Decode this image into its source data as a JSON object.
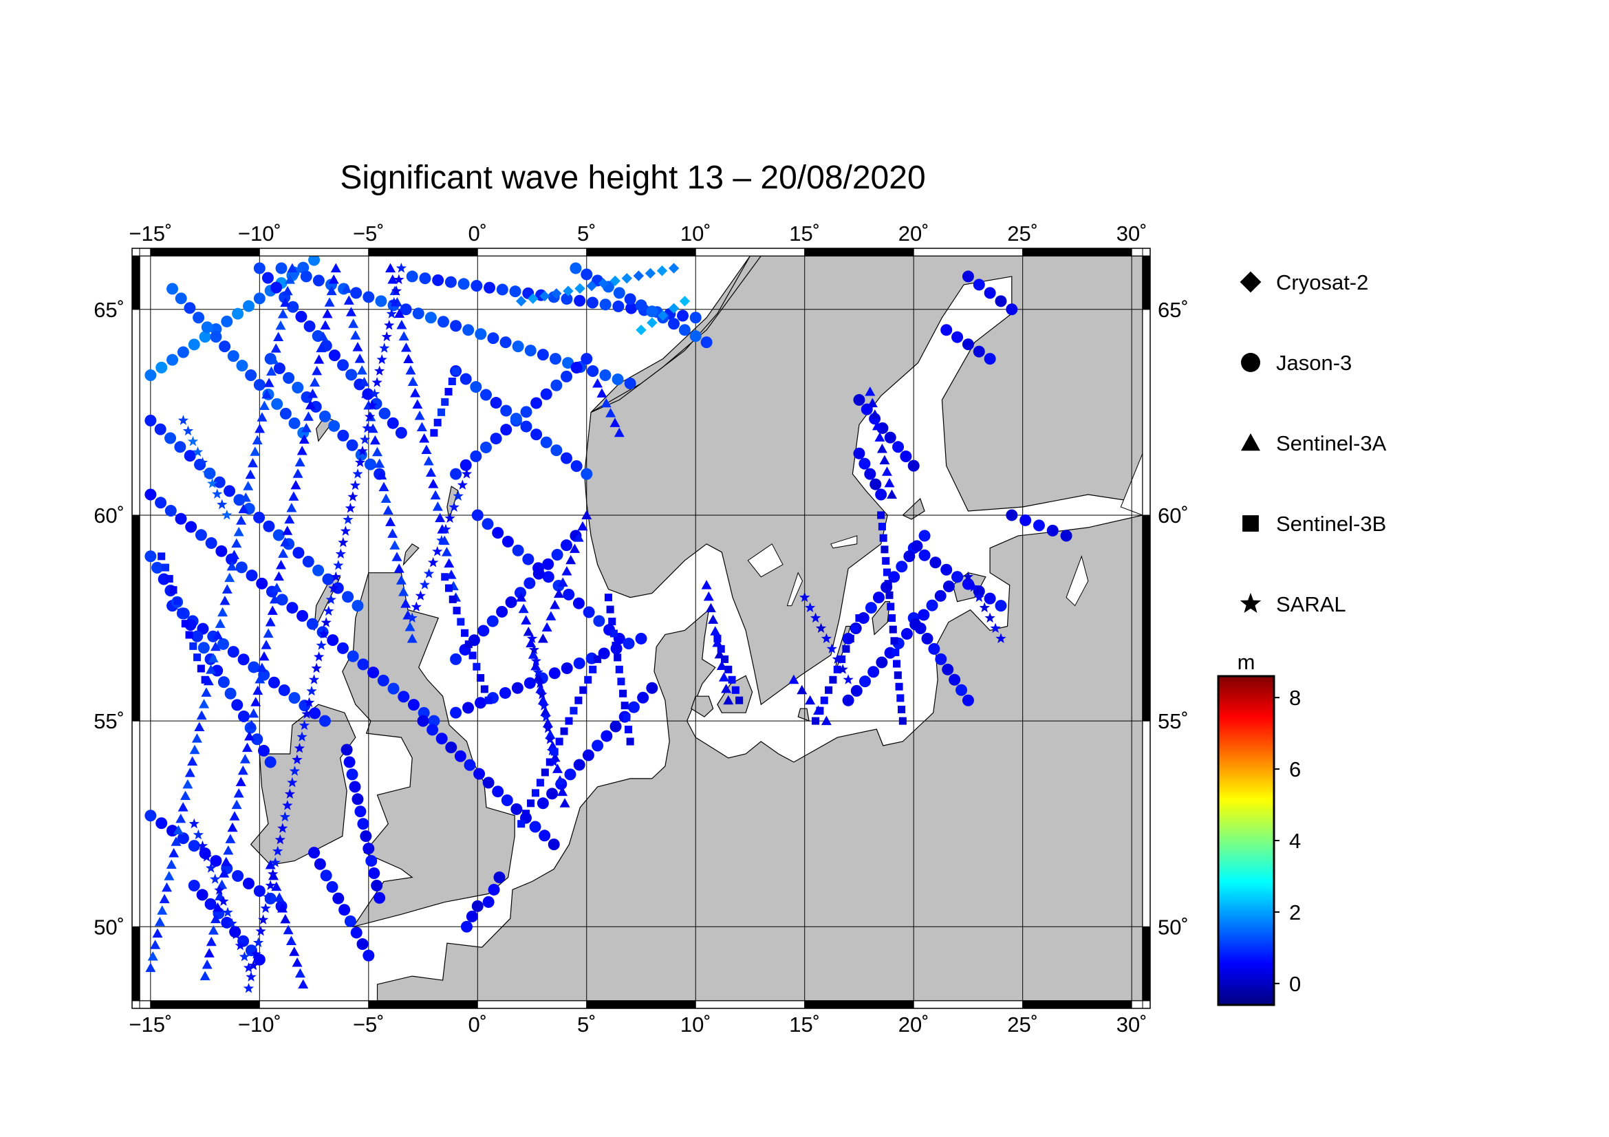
{
  "title": "Significant wave height 13 – 20/08/2020",
  "map": {
    "lon_range": [
      -15.5,
      30.5
    ],
    "lat_range": [
      48.2,
      66.3
    ],
    "lon_ticks": [
      -15,
      -10,
      -5,
      0,
      5,
      10,
      15,
      20,
      25,
      30
    ],
    "lon_tick_labels": [
      "−15˚",
      "−10˚",
      "−5˚",
      "0˚",
      "5˚",
      "10˚",
      "15˚",
      "20˚",
      "25˚",
      "30˚"
    ],
    "lat_ticks": [
      50,
      55,
      60,
      65
    ],
    "lat_tick_labels": [
      "50˚",
      "55˚",
      "60˚",
      "65˚"
    ],
    "land_color": "#c0c0c0",
    "sea_color": "#ffffff",
    "grid": true
  },
  "legend": {
    "items": [
      {
        "label": "Cryosat-2",
        "symbol": "diamond"
      },
      {
        "label": "Jason-3",
        "symbol": "circle"
      },
      {
        "label": "Sentinel-3A",
        "symbol": "triangle"
      },
      {
        "label": "Sentinel-3B",
        "symbol": "square"
      },
      {
        "label": "SARAL",
        "symbol": "star"
      }
    ]
  },
  "colorbar": {
    "unit": "m",
    "range": [
      -0.6,
      8.6
    ],
    "ticks": [
      0,
      2,
      4,
      6,
      8
    ],
    "tick_labels": [
      "0",
      "2",
      "4",
      "6",
      "8"
    ],
    "colors": [
      "#00007f",
      "#0000ff",
      "#007fff",
      "#00ffff",
      "#7fff7f",
      "#ffff00",
      "#ff7f00",
      "#ff0000",
      "#7f0000"
    ]
  },
  "chart_data": {
    "type": "scatter",
    "title": "Significant wave height 13 – 20/08/2020",
    "xlabel": "",
    "ylabel": "",
    "xlim": [
      -15.5,
      30.5
    ],
    "ylim": [
      48.2,
      66.3
    ],
    "color_scale": "significant wave height (m)",
    "series": [
      {
        "name": "Jason-3",
        "symbol": "circle",
        "value_range": [
          0.3,
          1.6
        ],
        "tracks": [
          {
            "from": [
              -15,
              63.4
            ],
            "to": [
              -7.5,
              66.2
            ],
            "swh": 1.6
          },
          {
            "from": [
              -14,
              65.5
            ],
            "to": [
              -8,
              62.0
            ],
            "swh": 1.3
          },
          {
            "from": [
              -10,
              66.0
            ],
            "to": [
              -3.5,
              62.0
            ],
            "swh": 0.9
          },
          {
            "from": [
              -9.5,
              63.8
            ],
            "to": [
              -4.5,
              61.0
            ],
            "swh": 1.1
          },
          {
            "from": [
              -15,
              62.3
            ],
            "to": [
              -5.5,
              57.8
            ],
            "swh": 1.0
          },
          {
            "from": [
              -15,
              60.5
            ],
            "to": [
              -2.0,
              55.0
            ],
            "swh": 0.8
          },
          {
            "from": [
              -14,
              57.8
            ],
            "to": [
              -7.0,
              55.0
            ],
            "swh": 0.9
          },
          {
            "from": [
              -15,
              59.0
            ],
            "to": [
              -9.5,
              54.0
            ],
            "swh": 0.9
          },
          {
            "from": [
              -15,
              52.7
            ],
            "to": [
              -9.0,
              50.5
            ],
            "swh": 0.7
          },
          {
            "from": [
              -13,
              51.0
            ],
            "to": [
              -10.0,
              49.2
            ],
            "swh": 0.7
          },
          {
            "from": [
              -7.5,
              51.8
            ],
            "to": [
              -5.0,
              49.3
            ],
            "swh": 0.6
          },
          {
            "from": [
              -6.0,
              54.3
            ],
            "to": [
              -4.5,
              50.7
            ],
            "swh": 0.5
          },
          {
            "from": [
              -2.5,
              55.0
            ],
            "to": [
              3.5,
              52.0
            ],
            "swh": 0.5
          },
          {
            "from": [
              0,
              60.0
            ],
            "to": [
              6.5,
              57.0
            ],
            "swh": 0.7
          },
          {
            "from": [
              -1.0,
              56.5
            ],
            "to": [
              4.5,
              59.5
            ],
            "swh": 0.6
          },
          {
            "from": [
              -1.0,
              55.2
            ],
            "to": [
              7.5,
              57.0
            ],
            "swh": 0.6
          },
          {
            "from": [
              3.0,
              53.0
            ],
            "to": [
              8.0,
              55.8
            ],
            "swh": 0.5
          },
          {
            "from": [
              0,
              50.5
            ],
            "to": [
              -0.5,
              50.0
            ],
            "swh": 0.4
          },
          {
            "from": [
              1.0,
              51.2
            ],
            "to": [
              0.5,
              50.6
            ],
            "swh": 0.4
          },
          {
            "from": [
              -9.0,
              66.0
            ],
            "to": [
              7.0,
              63.2
            ],
            "swh": 1.2
          },
          {
            "from": [
              -3.0,
              65.8
            ],
            "to": [
              10.0,
              64.8
            ],
            "swh": 1.0
          },
          {
            "from": [
              4.5,
              66.0
            ],
            "to": [
              10.5,
              64.2
            ],
            "swh": 1.2
          },
          {
            "from": [
              5.0,
              63.8
            ],
            "to": [
              -1.0,
              61.0
            ],
            "swh": 0.9
          },
          {
            "from": [
              -1.0,
              63.5
            ],
            "to": [
              5.0,
              61.0
            ],
            "swh": 1.0
          },
          {
            "from": [
              17.5,
              62.8
            ],
            "to": [
              20.0,
              61.2
            ],
            "swh": 0.4
          },
          {
            "from": [
              17.5,
              61.5
            ],
            "to": [
              18.5,
              60.5
            ],
            "swh": 0.4
          },
          {
            "from": [
              20.0,
              59.2
            ],
            "to": [
              24.0,
              57.8
            ],
            "swh": 0.5
          },
          {
            "from": [
              20.0,
              57.5
            ],
            "to": [
              22.5,
              55.5
            ],
            "swh": 0.5
          },
          {
            "from": [
              17.0,
              57.0
            ],
            "to": [
              20.5,
              59.5
            ],
            "swh": 0.5
          },
          {
            "from": [
              17.0,
              55.5
            ],
            "to": [
              22.0,
              58.5
            ],
            "swh": 0.5
          },
          {
            "from": [
              24.5,
              60.0
            ],
            "to": [
              27.0,
              59.5
            ],
            "swh": 0.4
          },
          {
            "from": [
              22.5,
              65.8
            ],
            "to": [
              24.5,
              65.0
            ],
            "swh": 0.4
          },
          {
            "from": [
              21.5,
              64.5
            ],
            "to": [
              23.5,
              63.8
            ],
            "swh": 0.4
          }
        ]
      },
      {
        "name": "Sentinel-3A",
        "symbol": "triangle",
        "value_range": [
          0.3,
          1.3
        ],
        "tracks": [
          {
            "from": [
              -15,
              49.0
            ],
            "to": [
              -8.5,
              66.0
            ],
            "swh": 1.0
          },
          {
            "from": [
              -12.5,
              48.8
            ],
            "to": [
              -6.5,
              66.0
            ],
            "swh": 0.8
          },
          {
            "from": [
              -6.0,
              65.5
            ],
            "to": [
              -3.0,
              57.0
            ],
            "swh": 0.9
          },
          {
            "from": [
              -9.5,
              51.5
            ],
            "to": [
              -8.0,
              48.6
            ],
            "swh": 0.6
          },
          {
            "from": [
              -4.0,
              66.0
            ],
            "to": [
              -1.0,
              58.0
            ],
            "swh": 0.8
          },
          {
            "from": [
              3.0,
              57.0
            ],
            "to": [
              5.0,
              60.0
            ],
            "swh": 0.5
          },
          {
            "from": [
              2.0,
              58.0
            ],
            "to": [
              4.0,
              53.0
            ],
            "swh": 0.5
          },
          {
            "from": [
              10.5,
              58.3
            ],
            "to": [
              11.5,
              55.5
            ],
            "swh": 0.4
          },
          {
            "from": [
              18.0,
              63.0
            ],
            "to": [
              19.0,
              60.5
            ],
            "swh": 0.4
          },
          {
            "from": [
              14.5,
              56.0
            ],
            "to": [
              16.0,
              55.0
            ],
            "swh": 0.4
          },
          {
            "from": [
              5.5,
              63.2
            ],
            "to": [
              6.5,
              62.0
            ],
            "swh": 0.8
          }
        ]
      },
      {
        "name": "Sentinel-3B",
        "symbol": "square",
        "value_range": [
          0.3,
          1.3
        ],
        "tracks": [
          {
            "from": [
              -14.5,
              59.0
            ],
            "to": [
              -12.5,
              56.0
            ],
            "swh": 0.7
          },
          {
            "from": [
              -1.5,
              58.5
            ],
            "to": [
              0.5,
              55.5
            ],
            "swh": 0.5
          },
          {
            "from": [
              2.0,
              52.5
            ],
            "to": [
              5.5,
              56.5
            ],
            "swh": 0.5
          },
          {
            "from": [
              6.0,
              58.0
            ],
            "to": [
              7.0,
              54.5
            ],
            "swh": 0.5
          },
          {
            "from": [
              -2.0,
              62.0
            ],
            "to": [
              -1.0,
              63.5
            ],
            "swh": 0.8
          },
          {
            "from": [
              15.5,
              55.0
            ],
            "to": [
              17.5,
              57.5
            ],
            "swh": 0.4
          },
          {
            "from": [
              18.5,
              60.0
            ],
            "to": [
              19.5,
              55.0
            ],
            "swh": 0.4
          },
          {
            "from": [
              11.0,
              57.0
            ],
            "to": [
              12.0,
              55.5
            ],
            "swh": 0.4
          }
        ]
      },
      {
        "name": "SARAL",
        "symbol": "star",
        "value_range": [
          0.3,
          1.3
        ],
        "tracks": [
          {
            "from": [
              -13.0,
              52.5
            ],
            "to": [
              -10.5,
              49.0
            ],
            "swh": 0.7
          },
          {
            "from": [
              -10.5,
              48.5
            ],
            "to": [
              -3.5,
              66.0
            ],
            "swh": 0.6
          },
          {
            "from": [
              -3.0,
              57.5
            ],
            "to": [
              -0.5,
              61.0
            ],
            "swh": 0.7
          },
          {
            "from": [
              2.5,
              57.0
            ],
            "to": [
              3.5,
              54.0
            ],
            "swh": 0.5
          },
          {
            "from": [
              -13.5,
              62.3
            ],
            "to": [
              -11.5,
              60.0
            ],
            "swh": 1.3
          },
          {
            "from": [
              22.5,
              58.5
            ],
            "to": [
              24.0,
              57.0
            ],
            "swh": 0.4
          },
          {
            "from": [
              15.0,
              58.0
            ],
            "to": [
              17.0,
              56.0
            ],
            "swh": 0.4
          }
        ]
      },
      {
        "name": "Cryosat-2",
        "symbol": "diamond",
        "value_range": [
          1.2,
          2.2
        ],
        "tracks": [
          {
            "from": [
              2.0,
              65.2
            ],
            "to": [
              9.0,
              66.0
            ],
            "swh": 1.7
          },
          {
            "from": [
              7.5,
              64.5
            ],
            "to": [
              9.5,
              65.2
            ],
            "swh": 2.0
          }
        ]
      }
    ]
  }
}
